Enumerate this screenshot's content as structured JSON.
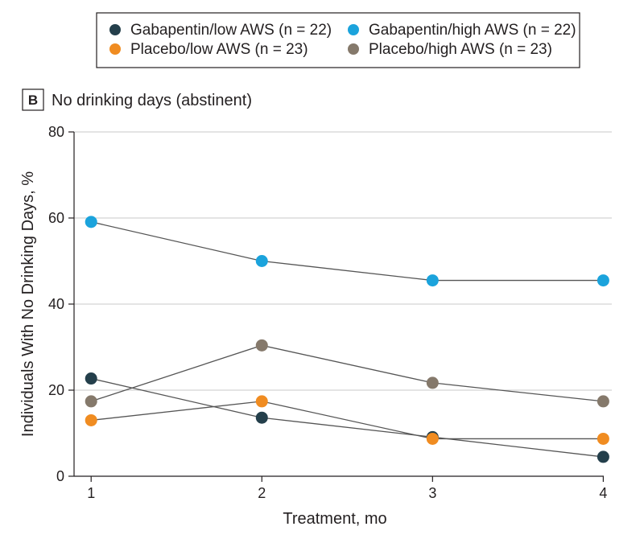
{
  "chart_data": {
    "type": "line",
    "panel_label": "B",
    "title": "No drinking days (abstinent)",
    "xlabel": "Treatment, mo",
    "ylabel": "Individuals With No Drinking Days, %",
    "x": [
      1,
      2,
      3,
      4
    ],
    "x_ticks": [
      "1",
      "2",
      "3",
      "4"
    ],
    "y_ticks": [
      "0",
      "20",
      "40",
      "60",
      "80"
    ],
    "xlim": [
      0.9,
      4.05
    ],
    "ylim": [
      0,
      80
    ],
    "grid": "horizontal",
    "legend_position": "top",
    "series": [
      {
        "name": "Gabapentin/low AWS (n = 22)",
        "color": "#243f4b",
        "values": [
          22.7,
          13.6,
          9.1,
          4.5
        ]
      },
      {
        "name": "Gabapentin/high AWS (n = 22)",
        "color": "#1ba3dc",
        "values": [
          59.1,
          50.0,
          45.5,
          45.5
        ]
      },
      {
        "name": "Placebo/low AWS (n = 23)",
        "color": "#f08c21",
        "values": [
          13.0,
          17.4,
          8.7,
          8.7
        ]
      },
      {
        "name": "Placebo/high AWS (n = 23)",
        "color": "#85796b",
        "values": [
          17.4,
          30.4,
          21.7,
          17.4
        ]
      }
    ]
  }
}
